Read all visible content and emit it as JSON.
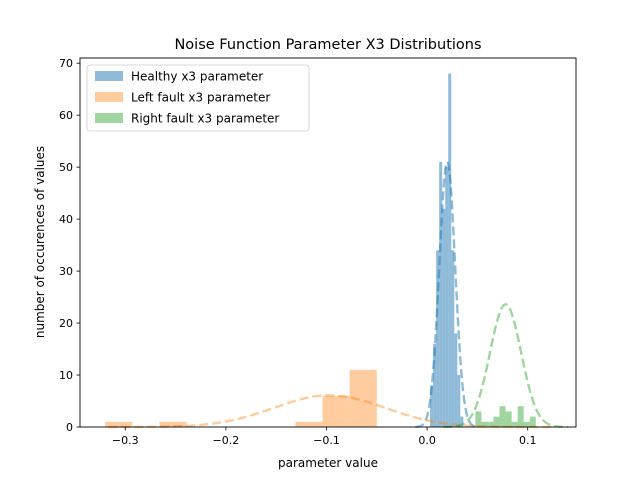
{
  "chart_data": {
    "type": "histogram",
    "title": "Noise Function Parameter X3 Distributions",
    "xlabel": "parameter value",
    "ylabel": "number of occurences of values",
    "xlim": [
      -0.345,
      0.148
    ],
    "ylim": [
      0,
      71
    ],
    "x_ticks": [
      -0.3,
      -0.2,
      -0.1,
      0.0,
      0.1
    ],
    "x_tick_labels": [
      "−0.3",
      "−0.2",
      "−0.1",
      "0.0",
      "0.1"
    ],
    "y_ticks": [
      0,
      10,
      20,
      30,
      40,
      50,
      60,
      70
    ],
    "y_tick_labels": [
      "0",
      "10",
      "20",
      "30",
      "40",
      "50",
      "60",
      "70"
    ],
    "grid": false,
    "legend_position": "top-left",
    "series": [
      {
        "name": "Healthy x3 parameter",
        "color": "#1f77b4",
        "alpha": 0.5,
        "bins": [
          {
            "x0": 0.003,
            "x1": 0.006,
            "y": 8
          },
          {
            "x0": 0.006,
            "x1": 0.009,
            "y": 16
          },
          {
            "x0": 0.009,
            "x1": 0.012,
            "y": 34
          },
          {
            "x0": 0.012,
            "x1": 0.015,
            "y": 51
          },
          {
            "x0": 0.015,
            "x1": 0.018,
            "y": 42
          },
          {
            "x0": 0.018,
            "x1": 0.021,
            "y": 50
          },
          {
            "x0": 0.021,
            "x1": 0.024,
            "y": 68
          },
          {
            "x0": 0.024,
            "x1": 0.027,
            "y": 34
          },
          {
            "x0": 0.027,
            "x1": 0.03,
            "y": 18
          },
          {
            "x0": 0.03,
            "x1": 0.033,
            "y": 10
          },
          {
            "x0": 0.033,
            "x1": 0.036,
            "y": 2
          }
        ],
        "fit_curve": {
          "mu": 0.02,
          "sigma": 0.0079,
          "amplitude": 51
        }
      },
      {
        "name": "Left fault x3 parameter",
        "color": "#ff7f0e",
        "alpha": 0.4,
        "bins": [
          {
            "x0": -0.32,
            "x1": -0.293,
            "y": 1
          },
          {
            "x0": -0.293,
            "x1": -0.266,
            "y": 0
          },
          {
            "x0": -0.266,
            "x1": -0.239,
            "y": 1
          },
          {
            "x0": -0.239,
            "x1": -0.212,
            "y": 0
          },
          {
            "x0": -0.212,
            "x1": -0.185,
            "y": 0
          },
          {
            "x0": -0.185,
            "x1": -0.158,
            "y": 0
          },
          {
            "x0": -0.158,
            "x1": -0.131,
            "y": 0
          },
          {
            "x0": -0.131,
            "x1": -0.104,
            "y": 1
          },
          {
            "x0": -0.104,
            "x1": -0.077,
            "y": 6
          },
          {
            "x0": -0.077,
            "x1": -0.05,
            "y": 11
          }
        ],
        "fit_curve": {
          "mu": -0.097,
          "sigma": 0.055,
          "amplitude": 6.1
        }
      },
      {
        "name": "Right fault x3 parameter",
        "color": "#2ca02c",
        "alpha": 0.45,
        "bins": [
          {
            "x0": 0.048,
            "x1": 0.054,
            "y": 3
          },
          {
            "x0": 0.054,
            "x1": 0.06,
            "y": 1
          },
          {
            "x0": 0.06,
            "x1": 0.066,
            "y": 1
          },
          {
            "x0": 0.066,
            "x1": 0.072,
            "y": 2
          },
          {
            "x0": 0.072,
            "x1": 0.078,
            "y": 4
          },
          {
            "x0": 0.078,
            "x1": 0.084,
            "y": 3
          },
          {
            "x0": 0.084,
            "x1": 0.09,
            "y": 1
          },
          {
            "x0": 0.09,
            "x1": 0.096,
            "y": 4
          },
          {
            "x0": 0.096,
            "x1": 0.102,
            "y": 1
          },
          {
            "x0": 0.102,
            "x1": 0.108,
            "y": 2
          }
        ],
        "fit_curve": {
          "mu": 0.078,
          "sigma": 0.0155,
          "amplitude": 23.6
        }
      }
    ]
  }
}
